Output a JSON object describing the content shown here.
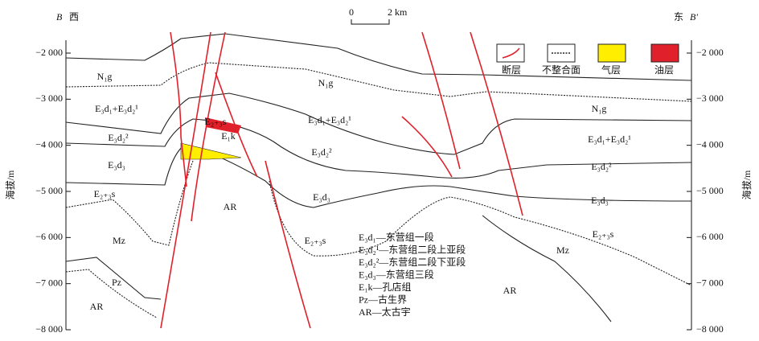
{
  "header": {
    "left_mark": "B",
    "left_dir": "西",
    "right_dir": "东",
    "right_mark": "B′",
    "scale_start": "0",
    "scale_end": "2 km"
  },
  "axis": {
    "title": "海拔/m",
    "ticks": [
      {
        "value": -2000,
        "label": "−2 000"
      },
      {
        "value": -3000,
        "label": "−3 000"
      },
      {
        "value": -4000,
        "label": "−4 000"
      },
      {
        "value": -5000,
        "label": "−5 000"
      },
      {
        "value": -6000,
        "label": "−6 000"
      },
      {
        "value": -7000,
        "label": "−7 000"
      },
      {
        "value": -8000,
        "label": "−8 000"
      }
    ]
  },
  "legend": [
    "断层",
    "不整合面",
    "气层",
    "油层"
  ],
  "units": [
    "N₁g",
    "N₁g",
    "N₁g",
    "E₃d₁+E₃d₂¹",
    "E₃d₁+E₃d₂¹",
    "E₃d₁+E₃d₂¹",
    "E₃d₂²",
    "E₃d₂²",
    "E₃d₂²",
    "E₃d₃",
    "E₃d₃",
    "E₃d₃",
    "E₂₊₃s",
    "E₂₊₃s",
    "E₂₊₃s",
    "E₂₊₃s",
    "E₁k",
    "Mz",
    "Mz",
    "Pz",
    "AR",
    "AR",
    "AR"
  ],
  "notes": [
    "E₃d₁—东营组一段",
    "E₃d₂¹—东营组二段上亚段",
    "E₃d₂²—东营组二段下亚段",
    "E₃d₃—东营组三段",
    "E₁k—孔店组",
    "Pz—古生界",
    "AR—太古宇"
  ]
}
